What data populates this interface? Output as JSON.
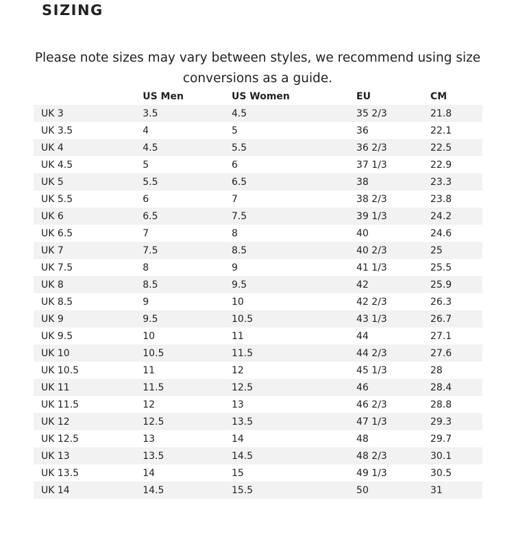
{
  "heading": "SIZING",
  "note": "Please note sizes may vary between styles, we recommend using size conversions as a guide.",
  "table": {
    "headers": [
      "",
      "US Men",
      "US Women",
      "EU",
      "CM"
    ],
    "rows": [
      [
        "UK 3",
        "3.5",
        "4.5",
        "35 2/3",
        "21.8"
      ],
      [
        "UK 3.5",
        "4",
        "5",
        "36",
        "22.1"
      ],
      [
        "UK 4",
        "4.5",
        "5.5",
        "36 2/3",
        "22.5"
      ],
      [
        "UK 4.5",
        "5",
        "6",
        "37 1/3",
        "22.9"
      ],
      [
        "UK 5",
        "5.5",
        "6.5",
        "38",
        "23.3"
      ],
      [
        "UK 5.5",
        "6",
        "7",
        "38 2/3",
        "23.8"
      ],
      [
        "UK 6",
        "6.5",
        "7.5",
        "39 1/3",
        "24.2"
      ],
      [
        "UK 6.5",
        "7",
        "8",
        "40",
        "24.6"
      ],
      [
        "UK 7",
        "7.5",
        "8.5",
        "40 2/3",
        "25"
      ],
      [
        "UK 7.5",
        "8",
        "9",
        "41 1/3",
        "25.5"
      ],
      [
        "UK 8",
        "8.5",
        "9.5",
        "42",
        "25.9"
      ],
      [
        "UK 8.5",
        "9",
        "10",
        "42 2/3",
        "26.3"
      ],
      [
        "UK 9",
        "9.5",
        "10.5",
        "43 1/3",
        "26.7"
      ],
      [
        "UK 9.5",
        "10",
        "11",
        "44",
        "27.1"
      ],
      [
        "UK 10",
        "10.5",
        "11.5",
        "44 2/3",
        "27.6"
      ],
      [
        "UK 10.5",
        "11",
        "12",
        "45 1/3",
        "28"
      ],
      [
        "UK 11",
        "11.5",
        "12.5",
        "46",
        "28.4"
      ],
      [
        "UK 11.5",
        "12",
        "13",
        "46 2/3",
        "28.8"
      ],
      [
        "UK 12",
        "12.5",
        "13.5",
        "47 1/3",
        "29.3"
      ],
      [
        "UK 12.5",
        "13",
        "14",
        "48",
        "29.7"
      ],
      [
        "UK 13",
        "13.5",
        "14.5",
        "48 2/3",
        "30.1"
      ],
      [
        "UK 13.5",
        "14",
        "15",
        "49 1/3",
        "30.5"
      ],
      [
        "UK 14",
        "14.5",
        "15.5",
        "50",
        "31"
      ]
    ]
  }
}
